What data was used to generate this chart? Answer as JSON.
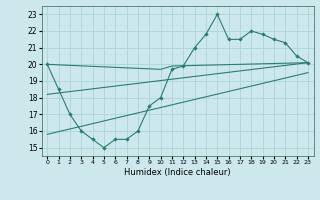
{
  "xlabel": "Humidex (Indice chaleur)",
  "bg_color": "#cce8ec",
  "grid_color": "#b0d8dc",
  "line_color": "#2a7d6e",
  "xlim": [
    -0.5,
    23.5
  ],
  "ylim": [
    14.5,
    23.5
  ],
  "xticks": [
    0,
    1,
    2,
    3,
    4,
    5,
    6,
    7,
    8,
    9,
    10,
    11,
    12,
    13,
    14,
    15,
    16,
    17,
    18,
    19,
    20,
    21,
    22,
    23
  ],
  "yticks": [
    15,
    16,
    17,
    18,
    19,
    20,
    21,
    22,
    23
  ],
  "line1_x": [
    0,
    1,
    2,
    3,
    4,
    5,
    6,
    7,
    8,
    9,
    10,
    11,
    12,
    13,
    14,
    15,
    16,
    17,
    18,
    19,
    20,
    21,
    22,
    23
  ],
  "line1_y": [
    20.0,
    18.5,
    17.0,
    16.0,
    15.5,
    15.0,
    15.5,
    15.5,
    16.0,
    17.5,
    18.0,
    19.7,
    19.9,
    21.0,
    21.8,
    23.0,
    21.5,
    21.5,
    22.0,
    21.8,
    21.5,
    21.3,
    20.5,
    20.1
  ],
  "line2_x": [
    0,
    10,
    11,
    23
  ],
  "line2_y": [
    20.0,
    19.7,
    19.9,
    20.1
  ],
  "line3_x": [
    0,
    23
  ],
  "line3_y": [
    18.2,
    20.1
  ],
  "line4_x": [
    0,
    23
  ],
  "line4_y": [
    15.8,
    19.5
  ]
}
